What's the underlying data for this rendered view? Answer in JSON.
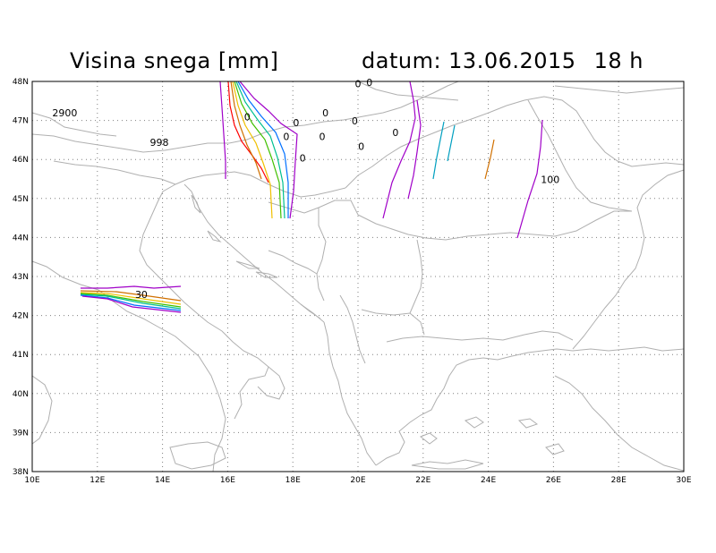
{
  "title": "Visina snega [mm]",
  "date_label": "datum: 13.06.2015",
  "hour_label": "18 h",
  "map": {
    "lat_labels": [
      "48N",
      "47N",
      "46N",
      "45N",
      "44N",
      "43N",
      "42N",
      "41N",
      "40N",
      "39N",
      "38N"
    ],
    "lon_labels": [
      "10E",
      "12E",
      "14E",
      "16E",
      "18E",
      "20E",
      "22E",
      "24E",
      "26E",
      "28E",
      "30E"
    ],
    "contour_labels": [
      {
        "text": "2900",
        "lon": 11.0,
        "lat": 47.1
      },
      {
        "text": "998",
        "lon": 13.9,
        "lat": 46.35
      },
      {
        "text": "0",
        "lon": 20.0,
        "lat": 47.85
      },
      {
        "text": "0",
        "lon": 20.35,
        "lat": 47.88
      },
      {
        "text": "0",
        "lon": 16.6,
        "lat": 47.0
      },
      {
        "text": "0",
        "lon": 19.0,
        "lat": 47.1
      },
      {
        "text": "0",
        "lon": 18.1,
        "lat": 46.85
      },
      {
        "text": "0",
        "lon": 19.9,
        "lat": 46.9
      },
      {
        "text": "0",
        "lon": 17.8,
        "lat": 46.5
      },
      {
        "text": "0",
        "lon": 18.9,
        "lat": 46.5
      },
      {
        "text": "0",
        "lon": 21.15,
        "lat": 46.6
      },
      {
        "text": "0",
        "lon": 20.1,
        "lat": 46.25
      },
      {
        "text": "0",
        "lon": 18.3,
        "lat": 45.95
      },
      {
        "text": "100",
        "lon": 25.9,
        "lat": 45.4
      },
      {
        "text": "30",
        "lon": 13.35,
        "lat": 42.45
      }
    ]
  }
}
